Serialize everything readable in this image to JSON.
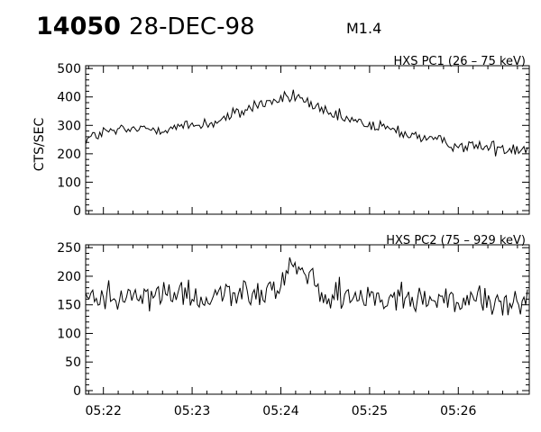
{
  "header": {
    "event_id": "14050",
    "date": "28-DEC-98",
    "flare_class": "M1.4"
  },
  "chart_data": [
    {
      "type": "line",
      "title": "HXS PC1 (26 – 75 keV)",
      "ylabel": "CTS/SEC",
      "xlabel": "",
      "x_range": [
        "05:21:48",
        "05:26:48"
      ],
      "ylim": [
        0,
        510
      ],
      "yticks": [
        0,
        100,
        200,
        300,
        400,
        500
      ],
      "xticks": [
        "05:22",
        "05:23",
        "05:24",
        "05:25",
        "05:26"
      ],
      "grid": false,
      "series": [
        {
          "color": "#000000",
          "points": [
            [
              "05:21:48",
              250
            ],
            [
              "05:22:00",
              275
            ],
            [
              "05:22:15",
              283
            ],
            [
              "05:22:30",
              288
            ],
            [
              "05:22:45",
              290
            ],
            [
              "05:23:00",
              300
            ],
            [
              "05:23:15",
              310
            ],
            [
              "05:23:30",
              340
            ],
            [
              "05:23:45",
              375
            ],
            [
              "05:24:00",
              390
            ],
            [
              "05:24:10",
              405
            ],
            [
              "05:24:20",
              375
            ],
            [
              "05:24:30",
              340
            ],
            [
              "05:24:45",
              320
            ],
            [
              "05:25:00",
              300
            ],
            [
              "05:25:15",
              285
            ],
            [
              "05:25:30",
              265
            ],
            [
              "05:25:45",
              245
            ],
            [
              "05:26:00",
              230
            ],
            [
              "05:26:15",
              225
            ],
            [
              "05:26:30",
              220
            ],
            [
              "05:26:48",
              222
            ]
          ]
        }
      ]
    },
    {
      "type": "line",
      "title": "HXS PC2 (75 – 929 keV)",
      "ylabel": "",
      "xlabel": "",
      "x_range": [
        "05:21:48",
        "05:26:48"
      ],
      "ylim": [
        0,
        255
      ],
      "yticks": [
        0,
        50,
        100,
        150,
        200,
        250
      ],
      "xticks": [
        "05:22",
        "05:23",
        "05:24",
        "05:25",
        "05:26"
      ],
      "grid": false,
      "series": [
        {
          "color": "#000000",
          "points": [
            [
              "05:21:48",
              165
            ],
            [
              "05:22:30",
              165
            ],
            [
              "05:23:00",
              165
            ],
            [
              "05:23:30",
              170
            ],
            [
              "05:24:00",
              180
            ],
            [
              "05:24:06",
              230
            ],
            [
              "05:24:30",
              168
            ],
            [
              "05:25:00",
              163
            ],
            [
              "05:25:30",
              160
            ],
            [
              "05:26:00",
              158
            ],
            [
              "05:26:48",
              158
            ]
          ]
        }
      ]
    }
  ]
}
